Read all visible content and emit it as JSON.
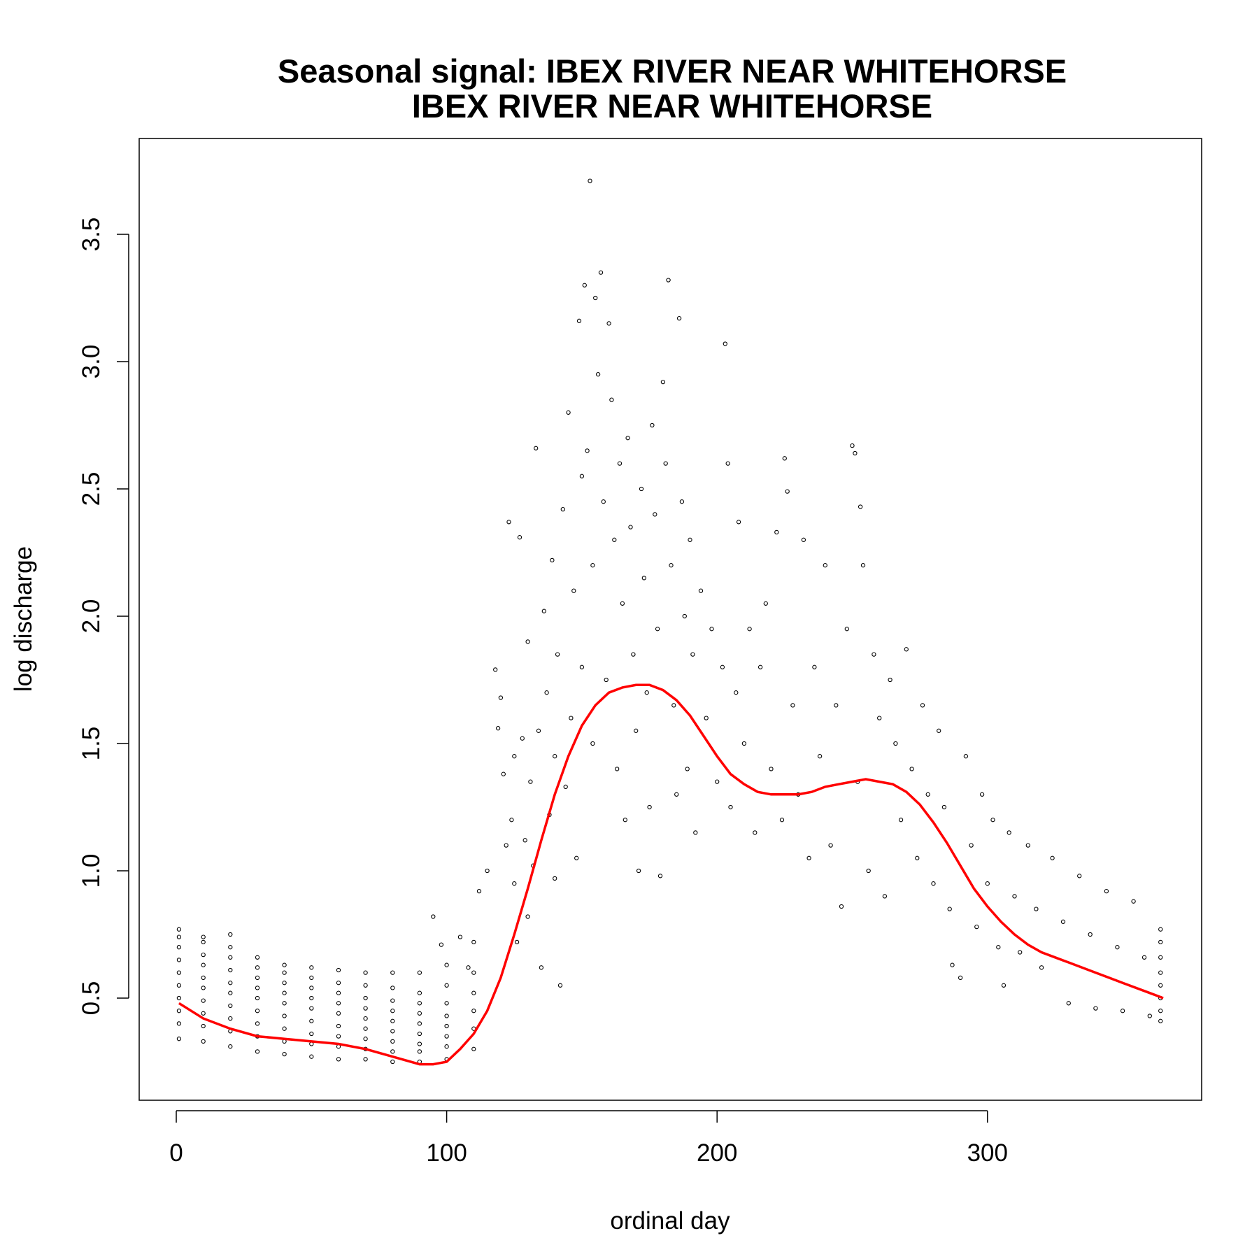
{
  "chart_data": {
    "type": "scatter",
    "title": "Seasonal signal: IBEX RIVER NEAR WHITEHORSE",
    "subtitle": "IBEX RIVER NEAR WHITEHORSE",
    "xlabel": "ordinal day",
    "ylabel": "log discharge",
    "xlim": [
      0,
      366
    ],
    "ylim": [
      0.2,
      3.75
    ],
    "x_ticks": [
      0,
      100,
      200,
      300
    ],
    "y_ticks": [
      0.5,
      1.0,
      1.5,
      2.0,
      2.5,
      3.0,
      3.5
    ],
    "x_tick_labels": [
      "0",
      "100",
      "200",
      "300"
    ],
    "y_tick_labels": [
      "0.5",
      "1.0",
      "1.5",
      "2.0",
      "2.5",
      "3.0",
      "3.5"
    ],
    "grid": false,
    "legend": "none",
    "point_style": "open circles, black",
    "series": [
      {
        "type": "scatter",
        "points": [
          [
            1,
            0.34
          ],
          [
            1,
            0.4
          ],
          [
            1,
            0.45
          ],
          [
            1,
            0.5
          ],
          [
            1,
            0.55
          ],
          [
            1,
            0.6
          ],
          [
            1,
            0.65
          ],
          [
            1,
            0.7
          ],
          [
            1,
            0.74
          ],
          [
            1,
            0.77
          ],
          [
            10,
            0.33
          ],
          [
            10,
            0.39
          ],
          [
            10,
            0.44
          ],
          [
            10,
            0.49
          ],
          [
            10,
            0.54
          ],
          [
            10,
            0.58
          ],
          [
            10,
            0.63
          ],
          [
            10,
            0.67
          ],
          [
            10,
            0.72
          ],
          [
            10,
            0.74
          ],
          [
            20,
            0.31
          ],
          [
            20,
            0.37
          ],
          [
            20,
            0.42
          ],
          [
            20,
            0.47
          ],
          [
            20,
            0.52
          ],
          [
            20,
            0.56
          ],
          [
            20,
            0.61
          ],
          [
            20,
            0.66
          ],
          [
            20,
            0.7
          ],
          [
            20,
            0.75
          ],
          [
            30,
            0.29
          ],
          [
            30,
            0.35
          ],
          [
            30,
            0.4
          ],
          [
            30,
            0.45
          ],
          [
            30,
            0.5
          ],
          [
            30,
            0.54
          ],
          [
            30,
            0.58
          ],
          [
            30,
            0.62
          ],
          [
            30,
            0.66
          ],
          [
            40,
            0.28
          ],
          [
            40,
            0.33
          ],
          [
            40,
            0.38
          ],
          [
            40,
            0.43
          ],
          [
            40,
            0.48
          ],
          [
            40,
            0.52
          ],
          [
            40,
            0.56
          ],
          [
            40,
            0.6
          ],
          [
            40,
            0.63
          ],
          [
            50,
            0.27
          ],
          [
            50,
            0.32
          ],
          [
            50,
            0.36
          ],
          [
            50,
            0.41
          ],
          [
            50,
            0.46
          ],
          [
            50,
            0.5
          ],
          [
            50,
            0.54
          ],
          [
            50,
            0.58
          ],
          [
            50,
            0.62
          ],
          [
            60,
            0.26
          ],
          [
            60,
            0.31
          ],
          [
            60,
            0.35
          ],
          [
            60,
            0.39
          ],
          [
            60,
            0.44
          ],
          [
            60,
            0.48
          ],
          [
            60,
            0.52
          ],
          [
            60,
            0.56
          ],
          [
            60,
            0.61
          ],
          [
            70,
            0.26
          ],
          [
            70,
            0.3
          ],
          [
            70,
            0.34
          ],
          [
            70,
            0.38
          ],
          [
            70,
            0.42
          ],
          [
            70,
            0.46
          ],
          [
            70,
            0.5
          ],
          [
            70,
            0.55
          ],
          [
            70,
            0.6
          ],
          [
            80,
            0.25
          ],
          [
            80,
            0.29
          ],
          [
            80,
            0.33
          ],
          [
            80,
            0.37
          ],
          [
            80,
            0.41
          ],
          [
            80,
            0.45
          ],
          [
            80,
            0.49
          ],
          [
            80,
            0.54
          ],
          [
            80,
            0.6
          ],
          [
            90,
            0.25
          ],
          [
            90,
            0.29
          ],
          [
            90,
            0.32
          ],
          [
            90,
            0.36
          ],
          [
            90,
            0.4
          ],
          [
            90,
            0.44
          ],
          [
            90,
            0.48
          ],
          [
            90,
            0.52
          ],
          [
            90,
            0.6
          ],
          [
            95,
            0.82
          ],
          [
            98,
            0.71
          ],
          [
            100,
            0.26
          ],
          [
            100,
            0.31
          ],
          [
            100,
            0.35
          ],
          [
            100,
            0.39
          ],
          [
            100,
            0.43
          ],
          [
            100,
            0.48
          ],
          [
            100,
            0.55
          ],
          [
            100,
            0.63
          ],
          [
            105,
            0.74
          ],
          [
            108,
            0.62
          ],
          [
            110,
            0.3
          ],
          [
            110,
            0.38
          ],
          [
            110,
            0.45
          ],
          [
            110,
            0.52
          ],
          [
            110,
            0.6
          ],
          [
            110,
            0.72
          ],
          [
            112,
            0.92
          ],
          [
            115,
            1.0
          ],
          [
            118,
            1.79
          ],
          [
            119,
            1.56
          ],
          [
            120,
            1.68
          ],
          [
            121,
            1.38
          ],
          [
            122,
            1.1
          ],
          [
            123,
            2.37
          ],
          [
            124,
            1.2
          ],
          [
            125,
            1.45
          ],
          [
            125,
            0.95
          ],
          [
            126,
            0.72
          ],
          [
            127,
            2.31
          ],
          [
            128,
            1.52
          ],
          [
            129,
            1.12
          ],
          [
            130,
            1.9
          ],
          [
            130,
            0.82
          ],
          [
            131,
            1.35
          ],
          [
            132,
            1.02
          ],
          [
            133,
            2.66
          ],
          [
            134,
            1.55
          ],
          [
            135,
            0.62
          ],
          [
            136,
            2.02
          ],
          [
            137,
            1.7
          ],
          [
            138,
            1.22
          ],
          [
            139,
            2.22
          ],
          [
            140,
            0.97
          ],
          [
            140,
            1.45
          ],
          [
            141,
            1.85
          ],
          [
            142,
            0.55
          ],
          [
            143,
            2.42
          ],
          [
            144,
            1.33
          ],
          [
            145,
            2.8
          ],
          [
            146,
            1.6
          ],
          [
            147,
            2.1
          ],
          [
            148,
            1.05
          ],
          [
            149,
            3.16
          ],
          [
            150,
            2.55
          ],
          [
            150,
            1.8
          ],
          [
            151,
            3.3
          ],
          [
            152,
            2.65
          ],
          [
            153,
            3.71
          ],
          [
            154,
            2.2
          ],
          [
            154,
            1.5
          ],
          [
            155,
            3.25
          ],
          [
            156,
            2.95
          ],
          [
            157,
            3.35
          ],
          [
            158,
            2.45
          ],
          [
            159,
            1.75
          ],
          [
            160,
            3.15
          ],
          [
            161,
            2.85
          ],
          [
            162,
            2.3
          ],
          [
            163,
            1.4
          ],
          [
            164,
            2.6
          ],
          [
            165,
            2.05
          ],
          [
            166,
            1.2
          ],
          [
            167,
            2.7
          ],
          [
            168,
            2.35
          ],
          [
            169,
            1.85
          ],
          [
            170,
            1.55
          ],
          [
            171,
            1.0
          ],
          [
            172,
            2.5
          ],
          [
            173,
            2.15
          ],
          [
            174,
            1.7
          ],
          [
            175,
            1.25
          ],
          [
            176,
            2.75
          ],
          [
            177,
            2.4
          ],
          [
            178,
            1.95
          ],
          [
            179,
            0.98
          ],
          [
            180,
            2.92
          ],
          [
            181,
            2.6
          ],
          [
            182,
            3.32
          ],
          [
            183,
            2.2
          ],
          [
            184,
            1.65
          ],
          [
            185,
            1.3
          ],
          [
            186,
            3.17
          ],
          [
            187,
            2.45
          ],
          [
            188,
            2.0
          ],
          [
            189,
            1.4
          ],
          [
            190,
            2.3
          ],
          [
            191,
            1.85
          ],
          [
            192,
            1.15
          ],
          [
            194,
            2.1
          ],
          [
            196,
            1.6
          ],
          [
            198,
            1.95
          ],
          [
            200,
            1.35
          ],
          [
            202,
            1.8
          ],
          [
            203,
            3.07
          ],
          [
            204,
            2.6
          ],
          [
            205,
            1.25
          ],
          [
            207,
            1.7
          ],
          [
            208,
            2.37
          ],
          [
            210,
            1.5
          ],
          [
            212,
            1.95
          ],
          [
            214,
            1.15
          ],
          [
            216,
            1.8
          ],
          [
            218,
            2.05
          ],
          [
            220,
            1.4
          ],
          [
            222,
            2.33
          ],
          [
            224,
            1.2
          ],
          [
            225,
            2.62
          ],
          [
            226,
            2.49
          ],
          [
            228,
            1.65
          ],
          [
            230,
            1.3
          ],
          [
            232,
            2.3
          ],
          [
            234,
            1.05
          ],
          [
            236,
            1.8
          ],
          [
            238,
            1.45
          ],
          [
            240,
            2.2
          ],
          [
            242,
            1.1
          ],
          [
            244,
            1.65
          ],
          [
            246,
            0.86
          ],
          [
            248,
            1.95
          ],
          [
            250,
            2.67
          ],
          [
            251,
            2.64
          ],
          [
            252,
            1.35
          ],
          [
            253,
            2.43
          ],
          [
            254,
            2.2
          ],
          [
            256,
            1.0
          ],
          [
            258,
            1.85
          ],
          [
            260,
            1.6
          ],
          [
            262,
            0.9
          ],
          [
            264,
            1.75
          ],
          [
            266,
            1.5
          ],
          [
            268,
            1.2
          ],
          [
            270,
            1.87
          ],
          [
            272,
            1.4
          ],
          [
            274,
            1.05
          ],
          [
            276,
            1.65
          ],
          [
            278,
            1.3
          ],
          [
            280,
            0.95
          ],
          [
            282,
            1.55
          ],
          [
            284,
            1.25
          ],
          [
            286,
            0.85
          ],
          [
            287,
            0.63
          ],
          [
            290,
            0.58
          ],
          [
            292,
            1.45
          ],
          [
            294,
            1.1
          ],
          [
            296,
            0.78
          ],
          [
            298,
            1.3
          ],
          [
            300,
            0.95
          ],
          [
            302,
            1.2
          ],
          [
            304,
            0.7
          ],
          [
            306,
            0.55
          ],
          [
            308,
            1.15
          ],
          [
            310,
            0.9
          ],
          [
            312,
            0.68
          ],
          [
            315,
            1.1
          ],
          [
            318,
            0.85
          ],
          [
            320,
            0.62
          ],
          [
            324,
            1.05
          ],
          [
            328,
            0.8
          ],
          [
            330,
            0.48
          ],
          [
            334,
            0.98
          ],
          [
            338,
            0.75
          ],
          [
            340,
            0.46
          ],
          [
            344,
            0.92
          ],
          [
            348,
            0.7
          ],
          [
            350,
            0.45
          ],
          [
            354,
            0.88
          ],
          [
            358,
            0.66
          ],
          [
            360,
            0.43
          ],
          [
            364,
            0.77
          ],
          [
            364,
            0.72
          ],
          [
            364,
            0.66
          ],
          [
            364,
            0.6
          ],
          [
            364,
            0.55
          ],
          [
            364,
            0.5
          ],
          [
            364,
            0.45
          ],
          [
            364,
            0.41
          ]
        ]
      },
      {
        "type": "line",
        "color": "#ff0000",
        "smooth": true,
        "x": [
          1,
          10,
          20,
          30,
          40,
          50,
          60,
          70,
          80,
          90,
          95,
          100,
          105,
          110,
          115,
          120,
          125,
          130,
          135,
          140,
          145,
          150,
          155,
          160,
          165,
          170,
          175,
          180,
          185,
          190,
          195,
          200,
          205,
          210,
          215,
          220,
          225,
          230,
          235,
          240,
          245,
          250,
          255,
          260,
          265,
          270,
          275,
          280,
          285,
          290,
          295,
          300,
          305,
          310,
          315,
          320,
          325,
          330,
          340,
          350,
          360,
          365
        ],
        "y": [
          0.48,
          0.42,
          0.38,
          0.35,
          0.34,
          0.33,
          0.32,
          0.3,
          0.27,
          0.24,
          0.24,
          0.25,
          0.3,
          0.36,
          0.45,
          0.58,
          0.75,
          0.93,
          1.12,
          1.3,
          1.45,
          1.57,
          1.65,
          1.7,
          1.72,
          1.73,
          1.73,
          1.71,
          1.67,
          1.61,
          1.53,
          1.45,
          1.38,
          1.34,
          1.31,
          1.3,
          1.3,
          1.3,
          1.31,
          1.33,
          1.34,
          1.35,
          1.36,
          1.35,
          1.34,
          1.31,
          1.26,
          1.19,
          1.11,
          1.02,
          0.93,
          0.86,
          0.8,
          0.75,
          0.71,
          0.68,
          0.66,
          0.64,
          0.6,
          0.56,
          0.52,
          0.5
        ]
      }
    ]
  }
}
